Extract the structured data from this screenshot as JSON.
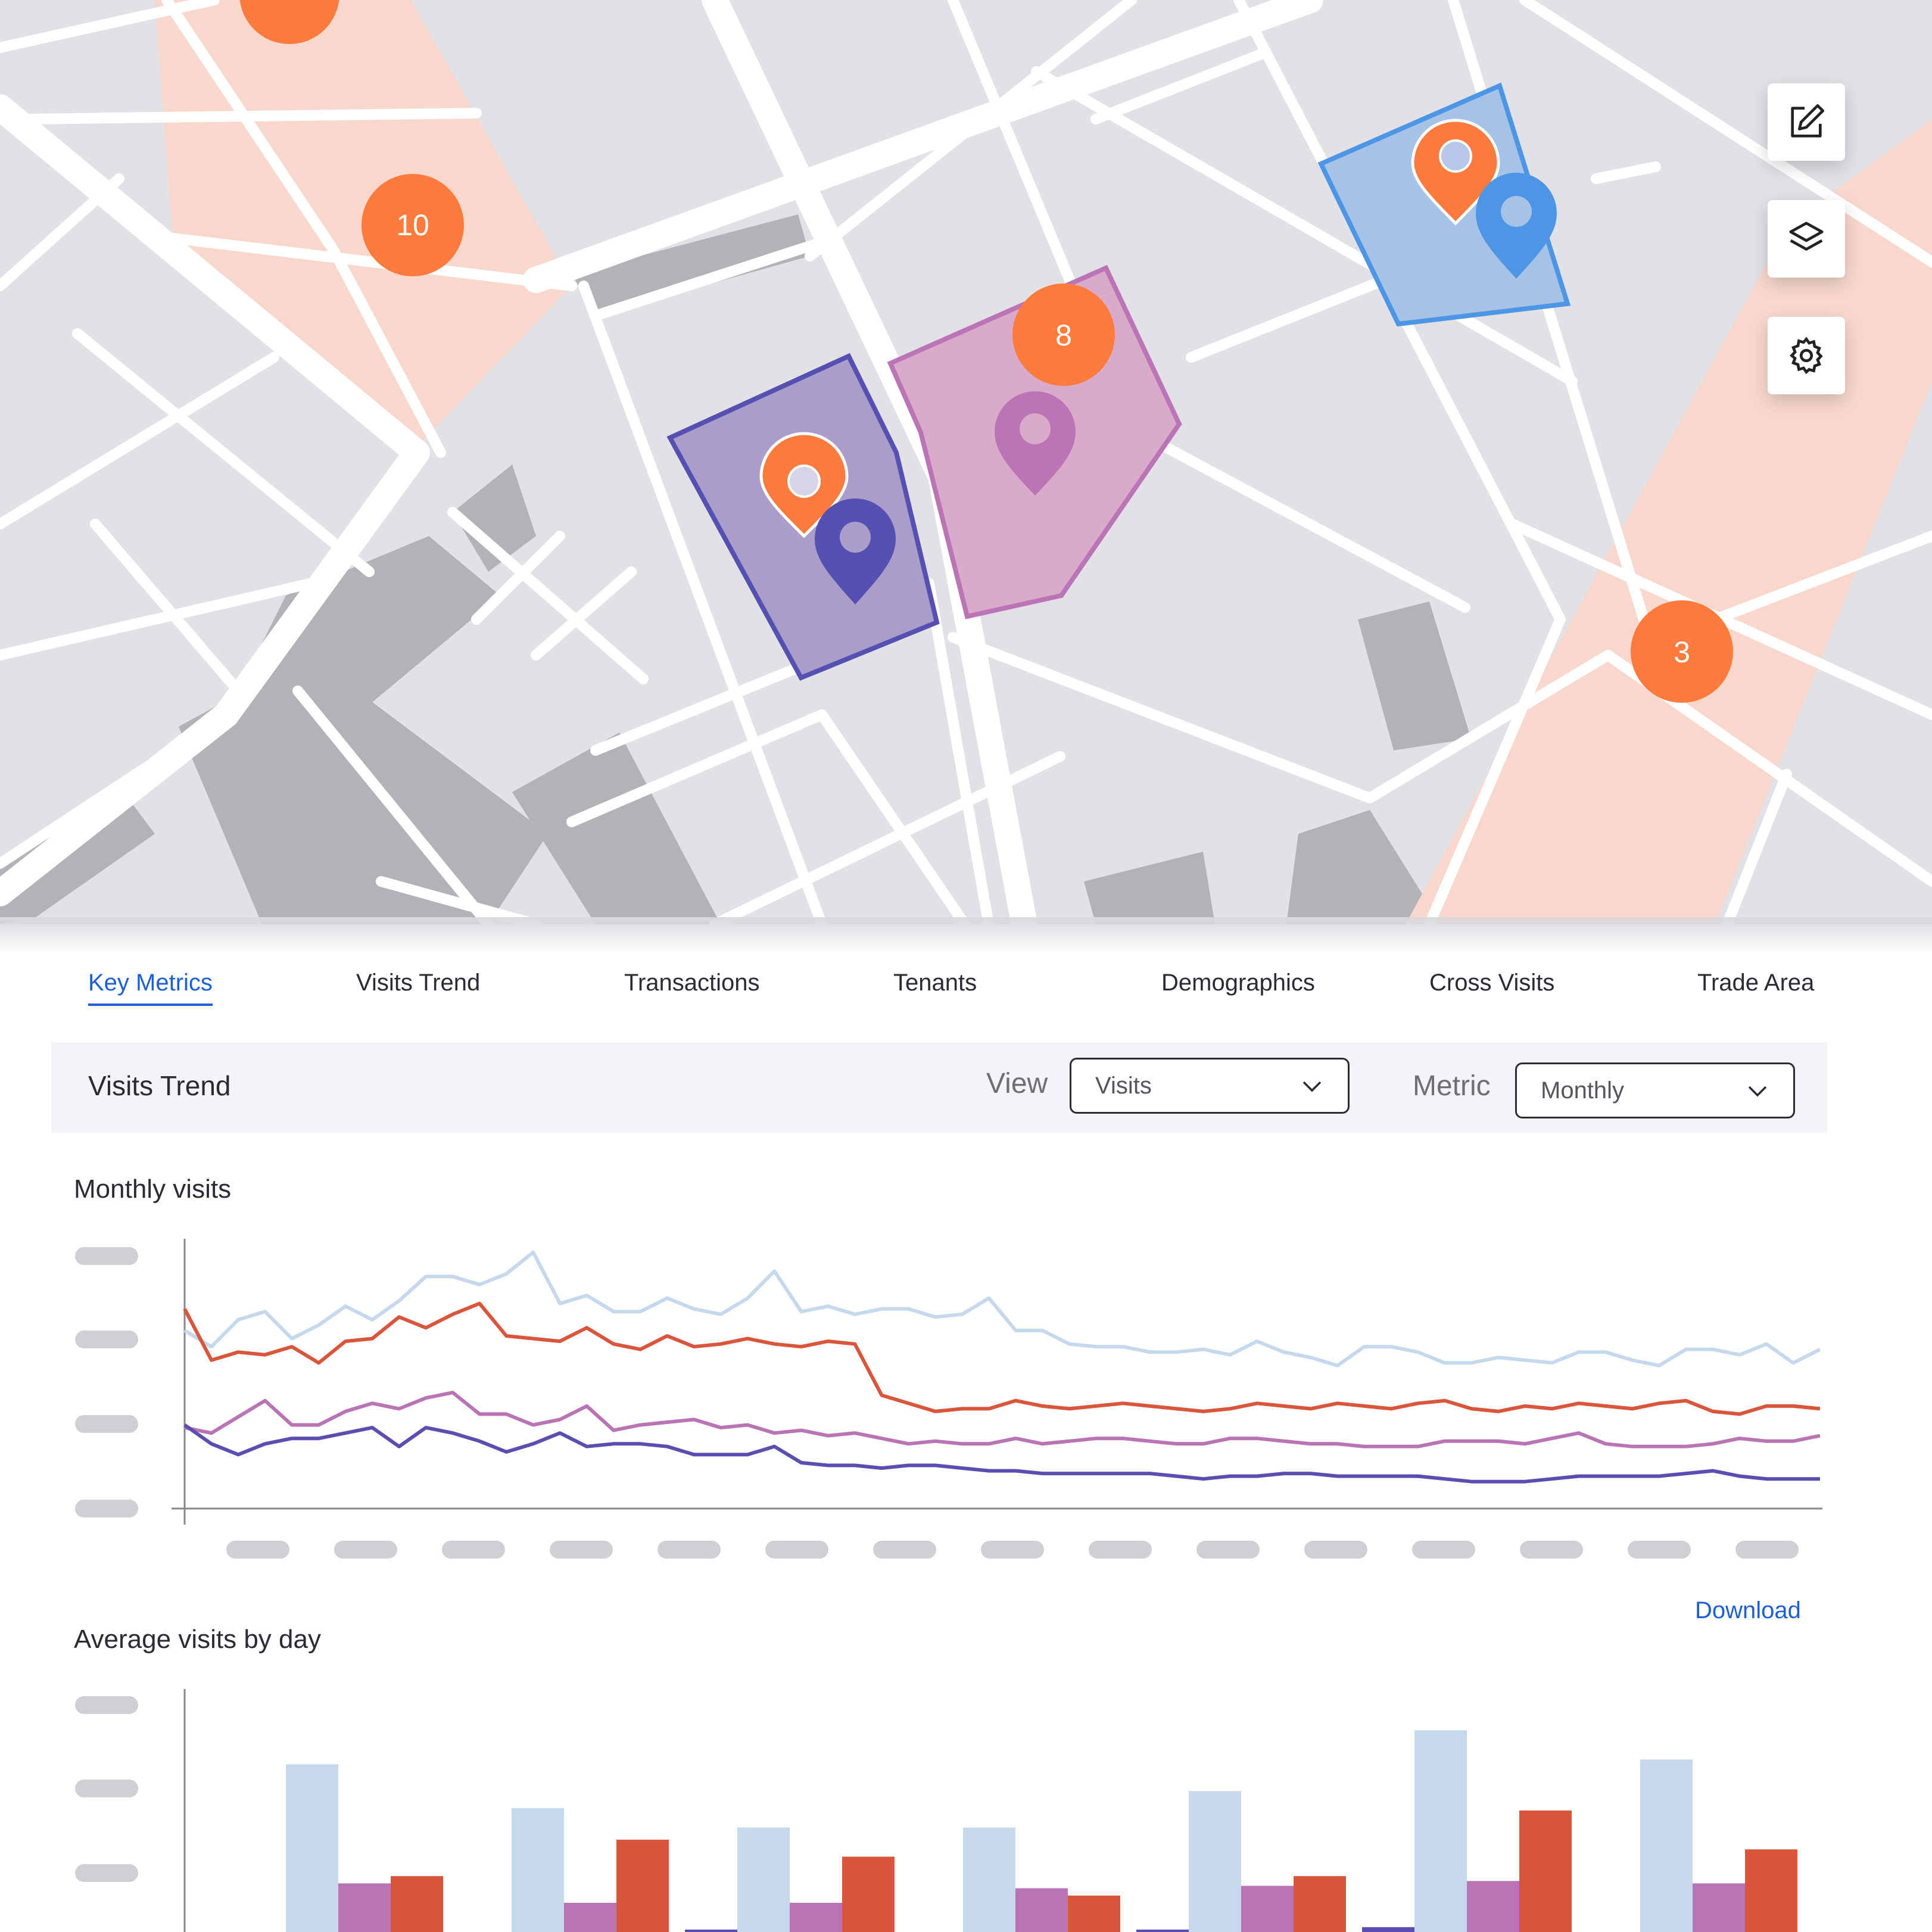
{
  "map": {
    "clusters": [
      {
        "label": "10",
        "color": "#ff7a3d"
      },
      {
        "label": "8",
        "color": "#ff7a3d"
      },
      {
        "label": "3",
        "color": "#ff7a3d"
      }
    ],
    "zone_colors": {
      "peach": "#f8d8cc",
      "purple": "#a99dc9",
      "pink": "#d9aac9",
      "blue": "#a6c3e6"
    },
    "pin_colors": {
      "orange": "#ff7a3d",
      "indigo": "#5650b3",
      "pink": "#bb75b6",
      "blue": "#4d96e6"
    },
    "controls": [
      {
        "name": "edit-icon"
      },
      {
        "name": "layers-icon"
      },
      {
        "name": "settings-icon"
      }
    ]
  },
  "tabs": [
    {
      "label": "Key Metrics",
      "active": true
    },
    {
      "label": "Visits Trend"
    },
    {
      "label": "Transactions"
    },
    {
      "label": "Tenants"
    },
    {
      "label": "Demographics"
    },
    {
      "label": "Cross Visits"
    },
    {
      "label": "Trade Area"
    }
  ],
  "toolbar": {
    "title": "Visits Trend",
    "view_label": "View",
    "view_value": "Visits",
    "metric_label": "Metric",
    "metric_value": "Monthly"
  },
  "monthly": {
    "title": "Monthly visits"
  },
  "daily": {
    "title": "Average visits by day",
    "download_label": "Download"
  },
  "colors": {
    "light_blue": "#c5d8ec",
    "red": "#d9553b",
    "pink": "#b874b4",
    "indigo": "#5a4fb0",
    "accent": "#1d5fd6"
  },
  "chart_data": [
    {
      "type": "line",
      "title": "Monthly visits",
      "x_count": 62,
      "ylim": [
        0,
        100
      ],
      "series": [
        {
          "color": "#c5d8ec",
          "values": [
            66,
            60,
            70,
            73,
            63,
            68,
            75,
            70,
            77,
            86,
            86,
            83,
            87,
            95,
            76,
            79,
            73,
            73,
            78,
            74,
            72,
            78,
            88,
            73,
            75,
            72,
            74,
            74,
            71,
            72,
            78,
            66,
            66,
            61,
            60,
            60,
            58,
            58,
            59,
            57,
            62,
            58,
            56,
            53,
            60,
            60,
            58,
            54,
            54,
            56,
            55,
            54,
            58,
            58,
            55,
            53,
            59,
            59,
            57,
            61,
            54,
            59
          ]
        },
        {
          "color": "#d9553b",
          "values": [
            74,
            55,
            58,
            57,
            60,
            54,
            62,
            63,
            71,
            67,
            72,
            76,
            64,
            63,
            62,
            67,
            61,
            59,
            64,
            60,
            61,
            63,
            61,
            60,
            62,
            61,
            42,
            39,
            36,
            37,
            37,
            40,
            38,
            37,
            38,
            39,
            38,
            37,
            36,
            37,
            39,
            38,
            37,
            39,
            38,
            37,
            39,
            40,
            37,
            36,
            38,
            37,
            39,
            38,
            37,
            39,
            40,
            36,
            35,
            38,
            38,
            37
          ]
        },
        {
          "color": "#b874b4",
          "values": [
            30,
            28,
            34,
            40,
            31,
            31,
            36,
            39,
            37,
            41,
            43,
            35,
            35,
            31,
            33,
            38,
            29,
            31,
            32,
            33,
            30,
            31,
            28,
            29,
            27,
            28,
            26,
            24,
            25,
            24,
            24,
            26,
            24,
            25,
            26,
            26,
            25,
            24,
            24,
            26,
            26,
            25,
            24,
            24,
            23,
            23,
            23,
            25,
            25,
            25,
            24,
            26,
            28,
            24,
            23,
            23,
            23,
            24,
            26,
            25,
            25,
            27
          ]
        },
        {
          "color": "#5a4fb0",
          "values": [
            31,
            24,
            20,
            24,
            26,
            26,
            28,
            30,
            23,
            30,
            28,
            25,
            21,
            24,
            28,
            23,
            24,
            24,
            23,
            20,
            20,
            20,
            23,
            17,
            16,
            16,
            15,
            16,
            16,
            15,
            14,
            14,
            13,
            13,
            13,
            13,
            13,
            12,
            11,
            12,
            12,
            13,
            13,
            12,
            12,
            12,
            12,
            11,
            10,
            10,
            10,
            11,
            12,
            12,
            12,
            12,
            13,
            14,
            12,
            11,
            11,
            11
          ]
        }
      ]
    },
    {
      "type": "bar",
      "title": "Average visits by day",
      "ylim": [
        0,
        100
      ],
      "series": [
        {
          "color": "#5a4fb0",
          "values": [
            0,
            0,
            1,
            0,
            1,
            2,
            0
          ]
        },
        {
          "color": "#c5d8ec",
          "values": [
            69,
            51,
            43,
            43,
            58,
            83,
            71
          ]
        },
        {
          "color": "#b874b4",
          "values": [
            20,
            12,
            12,
            18,
            19,
            21,
            20
          ]
        },
        {
          "color": "#d9553b",
          "values": [
            23,
            38,
            31,
            15,
            23,
            50,
            34
          ]
        }
      ]
    }
  ]
}
